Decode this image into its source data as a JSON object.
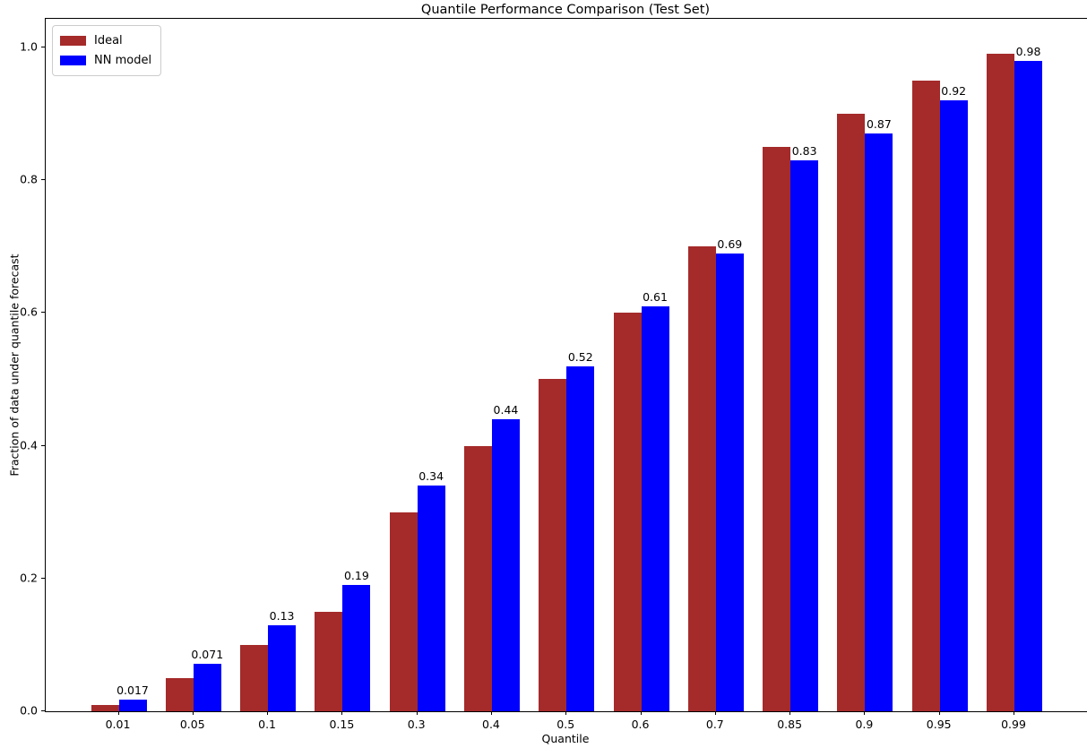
{
  "chart_data": {
    "type": "bar",
    "title": "Quantile Performance Comparison (Test Set)",
    "xlabel": "Quantile",
    "ylabel": "Fraction of data under quantile forecast",
    "categories": [
      "0.01",
      "0.05",
      "0.1",
      "0.15",
      "0.3",
      "0.4",
      "0.5",
      "0.6",
      "0.7",
      "0.85",
      "0.9",
      "0.95",
      "0.99"
    ],
    "series": [
      {
        "name": "Ideal",
        "color": "#a52a2a",
        "values": [
          0.01,
          0.05,
          0.1,
          0.15,
          0.3,
          0.4,
          0.5,
          0.6,
          0.7,
          0.85,
          0.9,
          0.95,
          0.99
        ]
      },
      {
        "name": "NN model",
        "color": "#0000ff",
        "values": [
          0.017,
          0.071,
          0.13,
          0.19,
          0.34,
          0.44,
          0.52,
          0.61,
          0.69,
          0.83,
          0.87,
          0.92,
          0.98
        ]
      }
    ],
    "bar_labels": {
      "labeled_series": "NN model",
      "values": [
        "0.017",
        "0.071",
        "0.13",
        "0.19",
        "0.34",
        "0.44",
        "0.52",
        "0.61",
        "0.69",
        "0.83",
        "0.87",
        "0.92",
        "0.98"
      ]
    },
    "yticks": [
      "0.0",
      "0.2",
      "0.4",
      "0.6",
      "0.8",
      "1.0"
    ],
    "ytick_values": [
      0.0,
      0.2,
      0.4,
      0.6,
      0.8,
      1.0
    ],
    "ylim": [
      0,
      1.043
    ],
    "grid": false,
    "legend_position": "upper left"
  },
  "legend": {
    "items": [
      {
        "label": "Ideal",
        "color": "#a52a2a"
      },
      {
        "label": "NN model",
        "color": "#0000ff"
      }
    ]
  }
}
